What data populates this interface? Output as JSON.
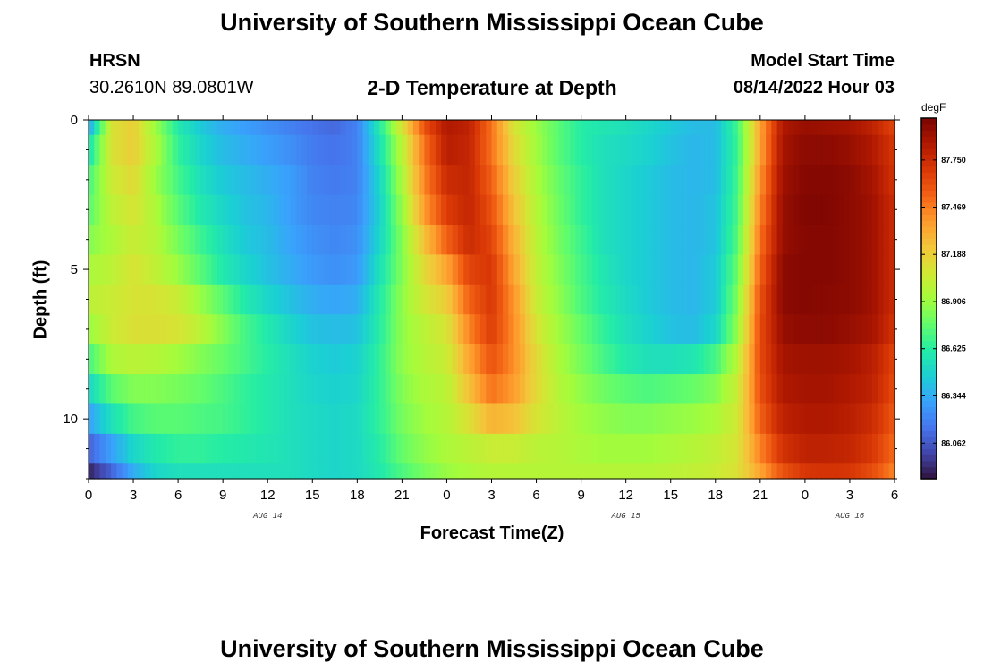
{
  "page": {
    "title": "University of Southern Mississippi Ocean Cube",
    "footer_title": "University of Southern Mississippi Ocean Cube"
  },
  "header": {
    "station": "HRSN",
    "coords": "30.2610N  89.0801W",
    "plot_title": "2-D Temperature at Depth",
    "model_start_label": "Model Start Time",
    "model_start_value": "08/14/2022 Hour 03"
  },
  "chart_data": {
    "type": "heatmap",
    "title": "2-D Temperature at Depth",
    "xlabel": "Forecast Time(Z)",
    "ylabel": "Depth (ft)",
    "x_tick_labels": [
      "0",
      "3",
      "6",
      "9",
      "12",
      "15",
      "18",
      "21",
      "0",
      "3",
      "6",
      "9",
      "12",
      "15",
      "18",
      "21",
      "0",
      "3",
      "6"
    ],
    "x_date_labels": [
      {
        "label": "AUG 14",
        "at_hour": 12
      },
      {
        "label": "AUG 15",
        "at_hour": 36
      },
      {
        "label": "AUG 16",
        "at_hour": 51
      }
    ],
    "y_tick_labels": [
      "0",
      "5",
      "10"
    ],
    "y_ticks": [
      0,
      5,
      10
    ],
    "xlim": [
      0,
      54
    ],
    "ylim": [
      0,
      12
    ],
    "colorbar": {
      "units": "degF",
      "range": [
        85.85,
        88.0
      ],
      "tick_labels": [
        "87.750",
        "87.469",
        "87.188",
        "86.906",
        "86.625",
        "86.344",
        "86.062"
      ],
      "tick_values": [
        87.75,
        87.469,
        87.188,
        86.906,
        86.625,
        86.344,
        86.062
      ],
      "colors": [
        "#30123b",
        "#4145ab",
        "#4675ed",
        "#39a2fc",
        "#1bcfd4",
        "#24eca6",
        "#61fc6c",
        "#a4fc3b",
        "#d1e834",
        "#f3c63a",
        "#fe9b2d",
        "#f36315",
        "#d93806",
        "#b11901",
        "#7a0402"
      ]
    },
    "time_hours": [
      0,
      1.5,
      3,
      4.5,
      6,
      7.5,
      9,
      10.5,
      12,
      13.5,
      15,
      16.5,
      18,
      19.5,
      21,
      22.5,
      24,
      25.5,
      27,
      28.5,
      30,
      31.5,
      33,
      34.5,
      36,
      37.5,
      39,
      40.5,
      42,
      43.5,
      45,
      46.5,
      48,
      49.5,
      51,
      52.5,
      54
    ],
    "depth_ft": [
      0,
      1,
      2,
      3,
      4,
      5,
      6,
      7,
      8,
      9,
      10,
      11,
      12
    ],
    "temperature_degF": [
      [
        86.3,
        87.1,
        87.2,
        86.9,
        86.6,
        86.45,
        86.35,
        86.3,
        86.25,
        86.2,
        86.15,
        86.12,
        86.2,
        86.6,
        87.1,
        87.6,
        87.85,
        87.8,
        87.5,
        87.1,
        86.9,
        86.75,
        86.62,
        86.58,
        86.55,
        86.5,
        86.45,
        86.4,
        86.4,
        86.7,
        87.35,
        87.85,
        87.92,
        87.9,
        87.88,
        87.8,
        87.65
      ],
      [
        86.55,
        87.1,
        87.2,
        86.95,
        86.65,
        86.5,
        86.4,
        86.35,
        86.3,
        86.25,
        86.18,
        86.15,
        86.2,
        86.55,
        87.0,
        87.5,
        87.82,
        87.78,
        87.5,
        87.15,
        86.92,
        86.75,
        86.62,
        86.55,
        86.52,
        86.48,
        86.42,
        86.38,
        86.4,
        86.68,
        87.35,
        87.88,
        87.95,
        87.95,
        87.92,
        87.85,
        87.7
      ],
      [
        86.7,
        87.05,
        87.15,
        86.9,
        86.7,
        86.55,
        86.45,
        86.4,
        86.35,
        86.3,
        86.2,
        86.18,
        86.2,
        86.5,
        86.95,
        87.45,
        87.75,
        87.78,
        87.55,
        87.2,
        86.95,
        86.78,
        86.65,
        86.55,
        86.5,
        86.45,
        86.4,
        86.38,
        86.4,
        86.7,
        87.4,
        87.9,
        87.97,
        87.97,
        87.95,
        87.88,
        87.72
      ],
      [
        86.75,
        87.0,
        87.1,
        86.95,
        86.75,
        86.6,
        86.5,
        86.42,
        86.38,
        86.3,
        86.22,
        86.2,
        86.22,
        86.48,
        86.9,
        87.38,
        87.68,
        87.78,
        87.6,
        87.25,
        86.98,
        86.8,
        86.65,
        86.55,
        86.5,
        86.45,
        86.4,
        86.38,
        86.42,
        86.72,
        87.45,
        87.92,
        87.98,
        87.98,
        87.95,
        87.9,
        87.75
      ],
      [
        86.85,
        86.95,
        87.05,
        86.98,
        86.82,
        86.68,
        86.55,
        86.45,
        86.4,
        86.32,
        86.25,
        86.22,
        86.25,
        86.5,
        86.85,
        87.25,
        87.55,
        87.75,
        87.65,
        87.3,
        87.0,
        86.82,
        86.68,
        86.55,
        86.5,
        86.45,
        86.4,
        86.38,
        86.42,
        86.75,
        87.5,
        87.92,
        87.97,
        87.97,
        87.95,
        87.9,
        87.75
      ],
      [
        86.95,
        87.0,
        87.1,
        87.02,
        86.9,
        86.75,
        86.6,
        86.5,
        86.42,
        86.35,
        86.28,
        86.25,
        86.28,
        86.55,
        86.85,
        87.15,
        87.35,
        87.65,
        87.7,
        87.35,
        87.02,
        86.85,
        86.7,
        86.58,
        86.5,
        86.45,
        86.4,
        86.38,
        86.45,
        86.8,
        87.55,
        87.95,
        87.97,
        87.97,
        87.95,
        87.9,
        87.75
      ],
      [
        87.0,
        87.05,
        87.1,
        87.1,
        87.05,
        86.9,
        86.75,
        86.6,
        86.5,
        86.42,
        86.35,
        86.32,
        86.35,
        86.6,
        86.88,
        87.08,
        87.2,
        87.55,
        87.7,
        87.4,
        87.05,
        86.88,
        86.72,
        86.6,
        86.52,
        86.45,
        86.4,
        86.38,
        86.45,
        86.85,
        87.6,
        87.95,
        87.97,
        87.96,
        87.95,
        87.9,
        87.75
      ],
      [
        86.9,
        87.05,
        87.12,
        87.12,
        87.1,
        87.0,
        86.85,
        86.7,
        86.6,
        86.5,
        86.42,
        86.4,
        86.42,
        86.62,
        86.88,
        87.0,
        87.1,
        87.45,
        87.68,
        87.42,
        87.1,
        86.92,
        86.78,
        86.65,
        86.55,
        86.48,
        86.42,
        86.4,
        86.5,
        86.9,
        87.62,
        87.92,
        87.95,
        87.95,
        87.92,
        87.88,
        87.72
      ],
      [
        86.7,
        86.95,
        87.0,
        86.98,
        86.92,
        86.85,
        86.78,
        86.7,
        86.62,
        86.55,
        86.48,
        86.45,
        86.48,
        86.65,
        86.88,
        86.98,
        87.05,
        87.35,
        87.6,
        87.42,
        87.15,
        86.95,
        86.82,
        86.7,
        86.6,
        86.55,
        86.55,
        86.58,
        86.7,
        87.0,
        87.62,
        87.88,
        87.9,
        87.9,
        87.88,
        87.82,
        87.65
      ],
      [
        86.5,
        86.75,
        86.85,
        86.85,
        86.82,
        86.78,
        86.72,
        86.65,
        86.6,
        86.55,
        86.5,
        86.48,
        86.5,
        86.65,
        86.85,
        86.95,
        87.0,
        87.25,
        87.5,
        87.38,
        87.15,
        86.98,
        86.88,
        86.8,
        86.75,
        86.72,
        86.75,
        86.78,
        86.85,
        87.05,
        87.6,
        87.85,
        87.88,
        87.88,
        87.85,
        87.8,
        87.62
      ],
      [
        86.3,
        86.55,
        86.7,
        86.75,
        86.75,
        86.72,
        86.7,
        86.65,
        86.6,
        86.55,
        86.52,
        86.5,
        86.52,
        86.65,
        86.82,
        86.92,
        86.98,
        87.12,
        87.3,
        87.25,
        87.1,
        87.0,
        86.92,
        86.88,
        86.85,
        86.85,
        86.88,
        86.9,
        86.95,
        87.08,
        87.55,
        87.8,
        87.85,
        87.85,
        87.82,
        87.75,
        87.58
      ],
      [
        86.1,
        86.3,
        86.5,
        86.6,
        86.65,
        86.65,
        86.62,
        86.6,
        86.58,
        86.55,
        86.52,
        86.5,
        86.52,
        86.62,
        86.78,
        86.88,
        86.95,
        87.0,
        87.05,
        87.05,
        87.0,
        86.98,
        86.95,
        86.92,
        86.92,
        86.92,
        86.95,
        86.98,
        87.02,
        87.1,
        87.45,
        87.72,
        87.8,
        87.8,
        87.78,
        87.7,
        87.52
      ],
      [
        85.9,
        86.1,
        86.35,
        86.5,
        86.55,
        86.55,
        86.55,
        86.55,
        86.55,
        86.55,
        86.52,
        86.5,
        86.52,
        86.6,
        86.72,
        86.82,
        86.9,
        86.95,
        86.98,
        86.98,
        86.98,
        86.98,
        86.98,
        86.98,
        86.98,
        86.98,
        87.0,
        87.02,
        87.05,
        87.12,
        87.35,
        87.6,
        87.7,
        87.72,
        87.7,
        87.62,
        87.45
      ]
    ]
  }
}
